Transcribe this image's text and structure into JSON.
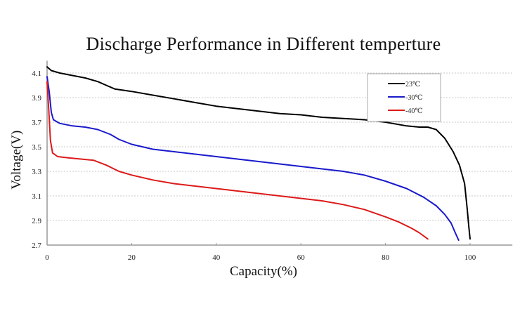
{
  "chart_data": {
    "type": "line",
    "title": "Discharge Performance in Different temperture",
    "xlabel": "Capacity(%)",
    "ylabel": "Voltage(V)",
    "xlim": [
      0,
      110
    ],
    "ylim": [
      2.7,
      4.2
    ],
    "xticks": [
      0,
      20,
      40,
      60,
      80,
      100
    ],
    "xtick_labels": [
      "0",
      "20",
      "40",
      "60",
      "80",
      "100"
    ],
    "yticks": [
      2.7,
      2.9,
      3.1,
      3.3,
      3.5,
      3.7,
      3.9,
      4.1
    ],
    "ytick_labels": [
      "2.7",
      "2.9",
      "3.1",
      "3.3",
      "3.5",
      "3.7",
      "3.9",
      "4.1"
    ],
    "grid": "horizontal-dotted",
    "legend_position": "top-right",
    "series": [
      {
        "name": "23℃",
        "color": "#000000",
        "points": [
          [
            0,
            4.15
          ],
          [
            1,
            4.12
          ],
          [
            3,
            4.1
          ],
          [
            6,
            4.08
          ],
          [
            9,
            4.06
          ],
          [
            12,
            4.03
          ],
          [
            14,
            4.0
          ],
          [
            16,
            3.97
          ],
          [
            20,
            3.95
          ],
          [
            25,
            3.92
          ],
          [
            30,
            3.89
          ],
          [
            35,
            3.86
          ],
          [
            40,
            3.83
          ],
          [
            45,
            3.81
          ],
          [
            50,
            3.79
          ],
          [
            55,
            3.77
          ],
          [
            60,
            3.76
          ],
          [
            65,
            3.74
          ],
          [
            70,
            3.73
          ],
          [
            75,
            3.72
          ],
          [
            80,
            3.7
          ],
          [
            85,
            3.67
          ],
          [
            88,
            3.66
          ],
          [
            90,
            3.66
          ],
          [
            92,
            3.64
          ],
          [
            94,
            3.57
          ],
          [
            96,
            3.46
          ],
          [
            97.5,
            3.35
          ],
          [
            98.7,
            3.2
          ],
          [
            99.3,
            3.0
          ],
          [
            99.7,
            2.85
          ],
          [
            100,
            2.75
          ]
        ]
      },
      {
        "name": "-30℃",
        "color": "#1a1acc",
        "points": [
          [
            0,
            4.07
          ],
          [
            0.5,
            3.95
          ],
          [
            1,
            3.78
          ],
          [
            1.5,
            3.72
          ],
          [
            3,
            3.69
          ],
          [
            6,
            3.67
          ],
          [
            9,
            3.66
          ],
          [
            12,
            3.64
          ],
          [
            15,
            3.6
          ],
          [
            17,
            3.56
          ],
          [
            20,
            3.52
          ],
          [
            25,
            3.48
          ],
          [
            30,
            3.46
          ],
          [
            35,
            3.44
          ],
          [
            40,
            3.42
          ],
          [
            45,
            3.4
          ],
          [
            50,
            3.38
          ],
          [
            55,
            3.36
          ],
          [
            60,
            3.34
          ],
          [
            65,
            3.32
          ],
          [
            70,
            3.3
          ],
          [
            75,
            3.27
          ],
          [
            80,
            3.22
          ],
          [
            85,
            3.16
          ],
          [
            89,
            3.09
          ],
          [
            92,
            3.02
          ],
          [
            94,
            2.95
          ],
          [
            95.5,
            2.88
          ],
          [
            96.5,
            2.8
          ],
          [
            97.3,
            2.74
          ]
        ]
      },
      {
        "name": "-40℃",
        "color": "#dd1a1a",
        "points": [
          [
            0,
            4.03
          ],
          [
            0.4,
            3.8
          ],
          [
            0.8,
            3.55
          ],
          [
            1.3,
            3.45
          ],
          [
            2.5,
            3.42
          ],
          [
            5,
            3.41
          ],
          [
            8,
            3.4
          ],
          [
            11,
            3.39
          ],
          [
            14,
            3.35
          ],
          [
            17,
            3.3
          ],
          [
            20,
            3.27
          ],
          [
            25,
            3.23
          ],
          [
            30,
            3.2
          ],
          [
            35,
            3.18
          ],
          [
            40,
            3.16
          ],
          [
            45,
            3.14
          ],
          [
            50,
            3.12
          ],
          [
            55,
            3.1
          ],
          [
            60,
            3.08
          ],
          [
            65,
            3.06
          ],
          [
            70,
            3.03
          ],
          [
            75,
            2.99
          ],
          [
            80,
            2.93
          ],
          [
            83,
            2.89
          ],
          [
            86,
            2.84
          ],
          [
            88,
            2.8
          ],
          [
            90,
            2.75
          ]
        ]
      }
    ]
  }
}
